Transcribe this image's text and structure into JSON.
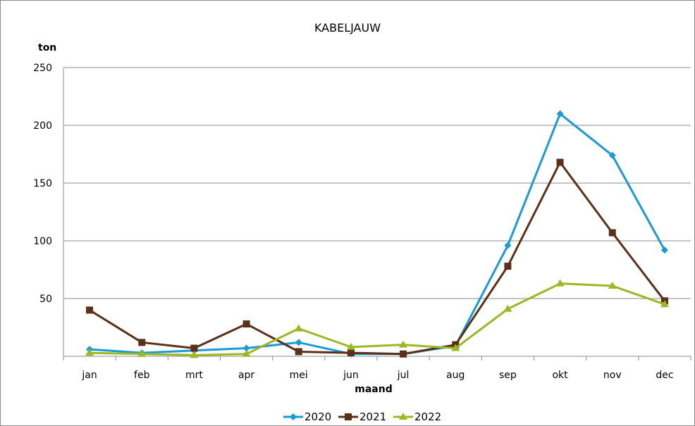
{
  "chart_data": {
    "type": "line",
    "title": "KABELJAUW",
    "ylabel": "ton",
    "xlabel": "maand",
    "ylim": [
      0,
      250
    ],
    "yticks": [
      250,
      200,
      150,
      100,
      50
    ],
    "grid": true,
    "legend": "bottom",
    "categories": [
      "jan",
      "feb",
      "mrt",
      "apr",
      "mei",
      "jun",
      "jul",
      "aug",
      "sep",
      "okt",
      "nov",
      "dec"
    ],
    "series": [
      {
        "name": "2020",
        "color": "#1a9ad6",
        "marker": "diamond",
        "values": [
          6,
          3,
          5,
          7,
          12,
          2,
          2,
          9,
          96,
          210,
          174,
          92
        ]
      },
      {
        "name": "2021",
        "color": "#5a3018",
        "marker": "square",
        "values": [
          40,
          12,
          7,
          28,
          4,
          3,
          2,
          10,
          78,
          168,
          107,
          48
        ]
      },
      {
        "name": "2022",
        "color": "#9ab924",
        "marker": "triangle",
        "values": [
          3,
          2,
          1,
          2,
          24,
          8,
          10,
          7,
          41,
          63,
          61,
          45
        ]
      }
    ]
  }
}
